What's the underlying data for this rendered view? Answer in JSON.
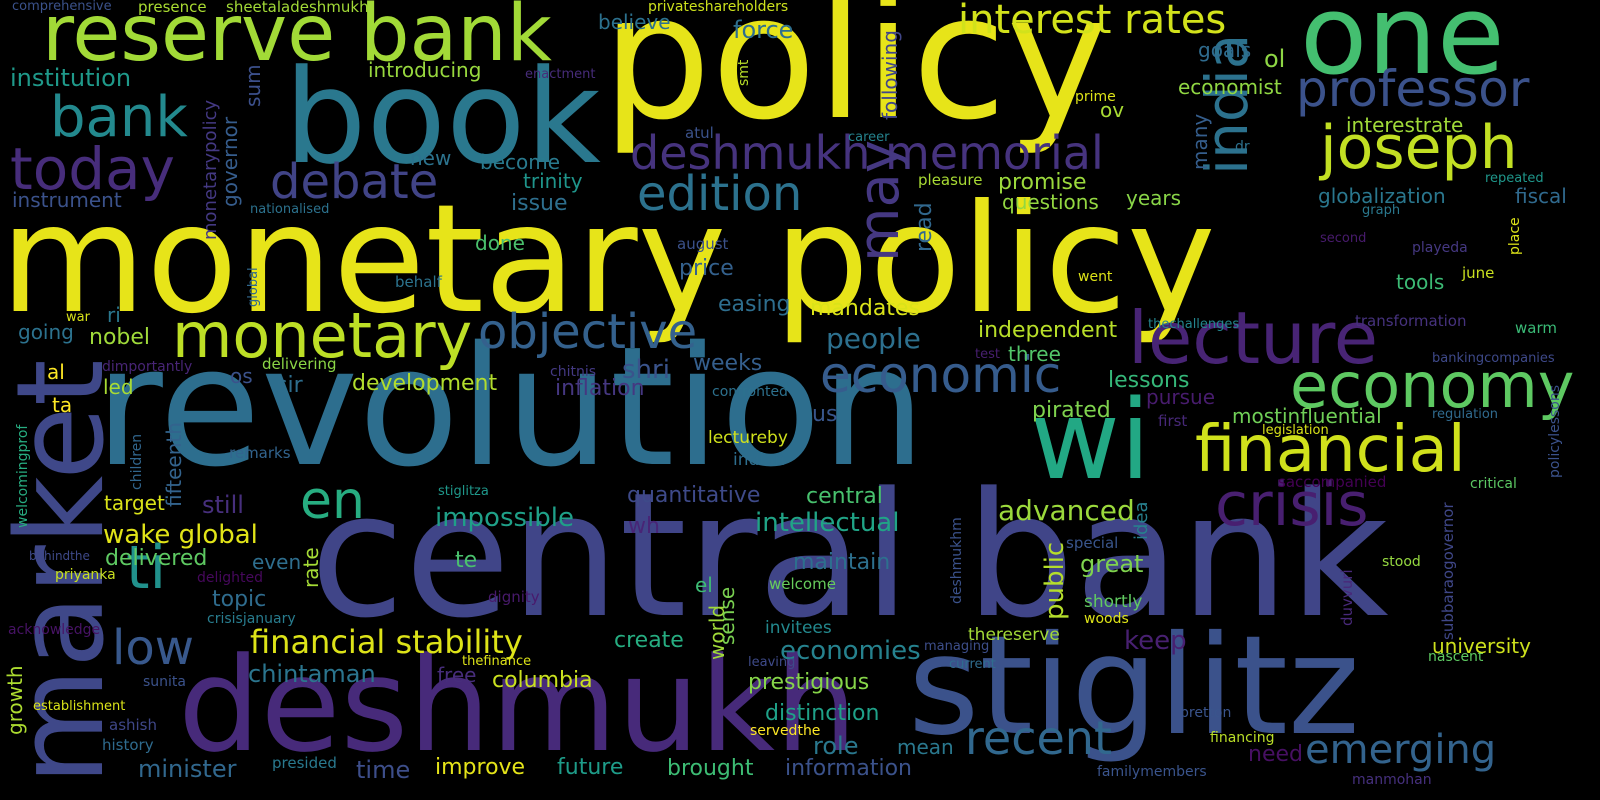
{
  "title": "Word cloud",
  "words": [
    {
      "text": "monetary policy",
      "color": "#e7e419"
    },
    {
      "text": "revolution",
      "color": "#2d6e8e"
    },
    {
      "text": "central bank",
      "color": "#404588"
    },
    {
      "text": "policy",
      "color": "#e7e419"
    },
    {
      "text": "book",
      "color": "#2a788e"
    },
    {
      "text": "deshmukh",
      "color": "#472a7a"
    },
    {
      "text": "stiglitz",
      "color": "#3b528b"
    },
    {
      "text": "market",
      "color": "#3f4889"
    },
    {
      "text": "one",
      "color": "#44bf70"
    },
    {
      "text": "reserve bank",
      "color": "#a2da37"
    },
    {
      "text": "wi",
      "color": "#22a884"
    },
    {
      "text": "monetary",
      "color": "#bddf26"
    },
    {
      "text": "lecture",
      "color": "#482475"
    },
    {
      "text": "economy",
      "color": "#5ec962"
    },
    {
      "text": "financial",
      "color": "#d0e11c"
    },
    {
      "text": "joseph",
      "color": "#c2df23"
    },
    {
      "text": "today",
      "color": "#472d7b"
    },
    {
      "text": "bank",
      "color": "#23898e"
    },
    {
      "text": "objective",
      "color": "#34618d"
    },
    {
      "text": "economic",
      "color": "#365c8d"
    },
    {
      "text": "crisis",
      "color": "#481f70"
    },
    {
      "text": "professor",
      "color": "#3b528b"
    },
    {
      "text": "deshmukh memorial",
      "color": "#46337e"
    },
    {
      "text": "interest rates",
      "color": "#d2e21b"
    },
    {
      "text": "debate",
      "color": "#414487"
    },
    {
      "text": "edition",
      "color": "#2c728e"
    },
    {
      "text": "may",
      "color": "#453882"
    },
    {
      "text": "india",
      "color": "#2c728e"
    },
    {
      "text": "ti",
      "color": "#21918c"
    },
    {
      "text": "en",
      "color": "#27ad81"
    },
    {
      "text": "low",
      "color": "#38588c"
    },
    {
      "text": "recent",
      "color": "#31688e"
    },
    {
      "text": "emerging",
      "color": "#33638d"
    },
    {
      "text": "financial stability",
      "color": "#dde318"
    },
    {
      "text": "wake global",
      "color": "#e1e418"
    },
    {
      "text": "advanced",
      "color": "#9bd93c"
    },
    {
      "text": "intellectual",
      "color": "#20a486"
    },
    {
      "text": "impossible",
      "color": "#1fa088"
    },
    {
      "text": "people",
      "color": "#2d708e"
    },
    {
      "text": "public",
      "color": "#b5de2b"
    },
    {
      "text": "great",
      "color": "#7fd34e"
    },
    {
      "text": "economies",
      "color": "#26828e"
    },
    {
      "text": "prestigious",
      "color": "#86d549"
    },
    {
      "text": "columbia",
      "color": "#cae11f"
    },
    {
      "text": "chintaman",
      "color": "#2b758e"
    },
    {
      "text": "topic",
      "color": "#2f6c8e"
    },
    {
      "text": "delivered",
      "color": "#5ec962"
    },
    {
      "text": "development",
      "color": "#b2dd2d"
    },
    {
      "text": "nobel",
      "color": "#9fda3a"
    },
    {
      "text": "shri",
      "color": "#3a538b"
    },
    {
      "text": "inflation",
      "color": "#453781"
    },
    {
      "text": "weeks",
      "color": "#355f8d"
    },
    {
      "text": "lessons",
      "color": "#35b779"
    },
    {
      "text": "pursue",
      "color": "#481c6e"
    },
    {
      "text": "pirated",
      "color": "#7fd34e"
    },
    {
      "text": "mostinfluential",
      "color": "#70cf57"
    },
    {
      "text": "independent",
      "color": "#b8de29"
    },
    {
      "text": "three",
      "color": "#52c569"
    },
    {
      "text": "mandates",
      "color": "#dae319"
    },
    {
      "text": "easing",
      "color": "#2e6e8e"
    },
    {
      "text": "price",
      "color": "#34618d"
    },
    {
      "text": "promise",
      "color": "#9bd93c"
    },
    {
      "text": "questions",
      "color": "#93d741"
    },
    {
      "text": "years",
      "color": "#89d548"
    },
    {
      "text": "globalization",
      "color": "#2a778e"
    },
    {
      "text": "fiscal",
      "color": "#306a8e"
    },
    {
      "text": "tools",
      "color": "#3cbb75"
    },
    {
      "text": "economist",
      "color": "#90d743"
    },
    {
      "text": "interestrate",
      "color": "#a0da39"
    },
    {
      "text": "goals",
      "color": "#2f6b8e"
    },
    {
      "text": "ol",
      "color": "#8ed645"
    },
    {
      "text": "ov",
      "color": "#a8db34"
    },
    {
      "text": "force",
      "color": "#2e6f8e"
    },
    {
      "text": "institution",
      "color": "#1f998a"
    },
    {
      "text": "introducing",
      "color": "#98d83e"
    },
    {
      "text": "instrument",
      "color": "#3b528b"
    },
    {
      "text": "governor",
      "color": "#365d8d"
    },
    {
      "text": "sum",
      "color": "#3c508b"
    },
    {
      "text": "monetarypolicy",
      "color": "#443983"
    },
    {
      "text": "new",
      "color": "#2c738e"
    },
    {
      "text": "become",
      "color": "#297a8e"
    },
    {
      "text": "trinity",
      "color": "#1f958b"
    },
    {
      "text": "issue",
      "color": "#2e6f8e"
    },
    {
      "text": "done",
      "color": "#4ac16d"
    },
    {
      "text": "believe",
      "color": "#2c718e"
    },
    {
      "text": "comprehensive",
      "color": "#3b528b"
    },
    {
      "text": "presence",
      "color": "#aadc32"
    },
    {
      "text": "sheetaladeshmukh",
      "color": "#a2da37"
    },
    {
      "text": "privateshareholders",
      "color": "#cde11d"
    },
    {
      "text": "enactment",
      "color": "#472c7a"
    },
    {
      "text": "smt",
      "color": "#b8de29"
    },
    {
      "text": "following",
      "color": "#404688"
    },
    {
      "text": "atul",
      "color": "#3b528b"
    },
    {
      "text": "prime",
      "color": "#dde318"
    },
    {
      "text": "career",
      "color": "#25838e"
    },
    {
      "text": "dr",
      "color": "#2d718e"
    },
    {
      "text": "many",
      "color": "#355e8d"
    },
    {
      "text": "repeated",
      "color": "#1f978b"
    },
    {
      "text": "graph",
      "color": "#2a788e"
    },
    {
      "text": "second",
      "color": "#481b6d"
    },
    {
      "text": "playeda",
      "color": "#453882"
    },
    {
      "text": "place",
      "color": "#dde318"
    },
    {
      "text": "june",
      "color": "#cae11f"
    },
    {
      "text": "transformation",
      "color": "#46327e"
    },
    {
      "text": "warm",
      "color": "#3aba76"
    },
    {
      "text": "bankingcompanies",
      "color": "#3e4989"
    },
    {
      "text": "regulation",
      "color": "#306a8e"
    },
    {
      "text": "policylessons",
      "color": "#3b528b"
    },
    {
      "text": "critical",
      "color": "#5cc863"
    },
    {
      "text": "subbaraogovernor",
      "color": "#3f4788"
    },
    {
      "text": "duvvuri",
      "color": "#482979"
    },
    {
      "text": "stood",
      "color": "#95d840"
    },
    {
      "text": "nascent",
      "color": "#5ec962"
    },
    {
      "text": "university",
      "color": "#cde11d"
    },
    {
      "text": "saccompanied",
      "color": "#440154"
    },
    {
      "text": "legislation",
      "color": "#d8e219"
    },
    {
      "text": "first",
      "color": "#472878"
    },
    {
      "text": "idea",
      "color": "#27808e"
    },
    {
      "text": "special",
      "color": "#39558c"
    },
    {
      "text": "shortly",
      "color": "#60ca60"
    },
    {
      "text": "woods",
      "color": "#dde318"
    },
    {
      "text": "keep",
      "color": "#482071"
    },
    {
      "text": "bretton",
      "color": "#3a548c"
    },
    {
      "text": "financing",
      "color": "#bade28"
    },
    {
      "text": "need",
      "color": "#471063"
    },
    {
      "text": "familymembers",
      "color": "#3a548c"
    },
    {
      "text": "manmohan",
      "color": "#46307e"
    },
    {
      "text": "thereserve",
      "color": "#a2da37"
    },
    {
      "text": "managing",
      "color": "#3d4e8a"
    },
    {
      "text": "current",
      "color": "#2f6c8e"
    },
    {
      "text": "welcome",
      "color": "#67cc5c"
    },
    {
      "text": "invitees",
      "color": "#23898e"
    },
    {
      "text": "leaving",
      "color": "#3e4a89"
    },
    {
      "text": "deshmukhm",
      "color": "#3b528b"
    },
    {
      "text": "maintain",
      "color": "#2d708e"
    },
    {
      "text": "central",
      "color": "#48c16e"
    },
    {
      "text": "lectureby",
      "color": "#d0e11c"
    },
    {
      "text": "indian",
      "color": "#2e6e8e"
    },
    {
      "text": "us",
      "color": "#39568c"
    },
    {
      "text": "confronted",
      "color": "#2d718e"
    },
    {
      "text": "chitnis",
      "color": "#443983"
    },
    {
      "text": "test",
      "color": "#481f70"
    },
    {
      "text": "stiglitza",
      "color": "#1f988b"
    },
    {
      "text": "quantitative",
      "color": "#3e4a89"
    },
    {
      "text": "wh",
      "color": "#482576"
    },
    {
      "text": "world",
      "color": "#a0da39"
    },
    {
      "text": "sense",
      "color": "#7ad151"
    },
    {
      "text": "el",
      "color": "#3dbc74"
    },
    {
      "text": "create",
      "color": "#26ad81"
    },
    {
      "text": "distinction",
      "color": "#1fa188"
    },
    {
      "text": "role",
      "color": "#2a788e"
    },
    {
      "text": "mean",
      "color": "#2a788e"
    },
    {
      "text": "information",
      "color": "#3b528b"
    },
    {
      "text": "brought",
      "color": "#3dbc74"
    },
    {
      "text": "future",
      "color": "#1e9c89"
    },
    {
      "text": "improve",
      "color": "#e5e419"
    },
    {
      "text": "time",
      "color": "#3d4e8a"
    },
    {
      "text": "minister",
      "color": "#31688e"
    },
    {
      "text": "presided",
      "color": "#29798e"
    },
    {
      "text": "servedthe",
      "color": "#fde725"
    },
    {
      "text": "free",
      "color": "#472d7b"
    },
    {
      "text": "thefinance",
      "color": "#dde318"
    },
    {
      "text": "history",
      "color": "#2f6b8e"
    },
    {
      "text": "ashish",
      "color": "#3f4788"
    },
    {
      "text": "sunita",
      "color": "#3b528b"
    },
    {
      "text": "establishment",
      "color": "#dae319"
    },
    {
      "text": "growth",
      "color": "#addc30"
    },
    {
      "text": "acknowledge",
      "color": "#471365"
    },
    {
      "text": "priyanka",
      "color": "#c8e020"
    },
    {
      "text": "behindthe",
      "color": "#3e4989"
    },
    {
      "text": "delighted",
      "color": "#46085c"
    },
    {
      "text": "even",
      "color": "#2e6e8e"
    },
    {
      "text": "te",
      "color": "#4ac16d"
    },
    {
      "text": "dignity",
      "color": "#481a6c"
    },
    {
      "text": "crisisjanuary",
      "color": "#287c8e"
    },
    {
      "text": "rate",
      "color": "#a5db36"
    },
    {
      "text": "fifteenth",
      "color": "#33638d"
    },
    {
      "text": "children",
      "color": "#31668e"
    },
    {
      "text": "target",
      "color": "#dae319"
    },
    {
      "text": "still",
      "color": "#472f7d"
    },
    {
      "text": "remarks",
      "color": "#32648e"
    },
    {
      "text": "welcomingprof",
      "color": "#27ad81"
    },
    {
      "text": "led",
      "color": "#a8db34"
    },
    {
      "text": "ta",
      "color": "#fde725"
    },
    {
      "text": "al",
      "color": "#fde725"
    },
    {
      "text": "dimportantly",
      "color": "#482576"
    },
    {
      "text": "os",
      "color": "#3b528b"
    },
    {
      "text": "sir",
      "color": "#2e6e8e"
    },
    {
      "text": "delivering",
      "color": "#8bd646"
    },
    {
      "text": "going",
      "color": "#2c728e"
    },
    {
      "text": "ri",
      "color": "#2a778e"
    },
    {
      "text": "war",
      "color": "#d8e219"
    },
    {
      "text": "global",
      "color": "#31688e"
    },
    {
      "text": "behalf",
      "color": "#2c738e"
    },
    {
      "text": "nationalised",
      "color": "#2c728e"
    },
    {
      "text": "august",
      "color": "#3b528b"
    },
    {
      "text": "went",
      "color": "#dde318"
    },
    {
      "text": "thechallenges",
      "color": "#24868e"
    },
    {
      "text": "pleasure",
      "color": "#a8db34"
    },
    {
      "text": "read",
      "color": "#31688e"
    }
  ]
}
